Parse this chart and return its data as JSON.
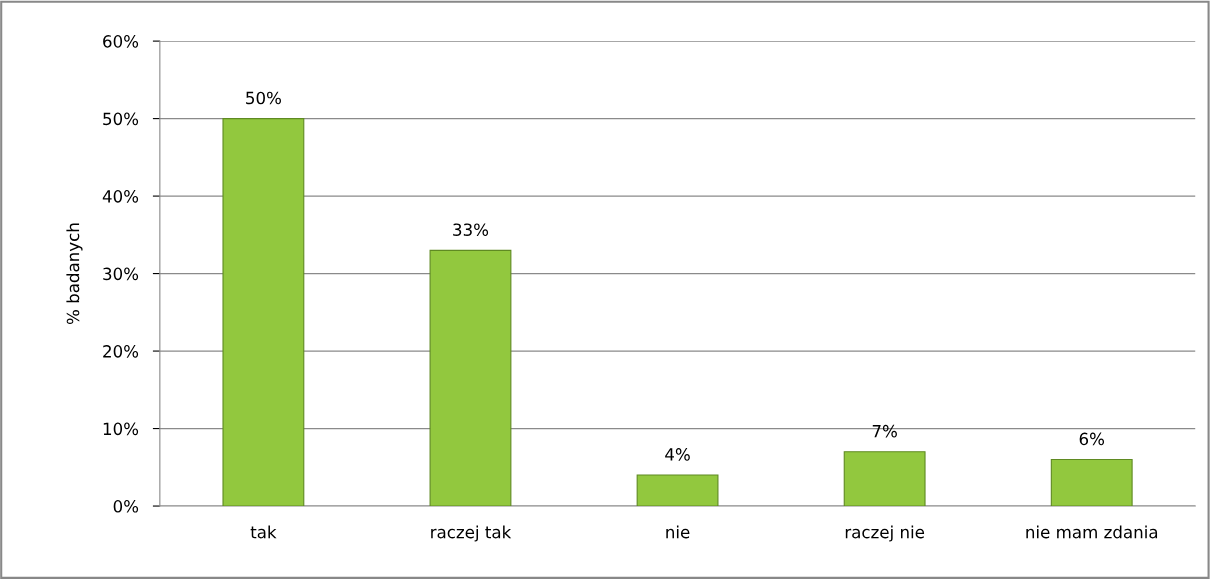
{
  "chart_data": {
    "type": "bar",
    "ylabel": "% badanych",
    "categories": [
      "tak",
      "raczej tak",
      "nie",
      "raczej nie",
      "nie mam zdania"
    ],
    "values": [
      50,
      33,
      4,
      7,
      6
    ],
    "value_labels": [
      "50%",
      "33%",
      "4%",
      "7%",
      "6%"
    ],
    "color": "#92c83e",
    "ylim": [
      0,
      60
    ],
    "yticks": [
      {
        "value": 0,
        "label": "0%"
      },
      {
        "value": 10,
        "label": "10%"
      },
      {
        "value": 20,
        "label": "20%"
      },
      {
        "value": 30,
        "label": "30%"
      },
      {
        "value": 40,
        "label": "40%"
      },
      {
        "value": 50,
        "label": "50%"
      },
      {
        "value": 60,
        "label": "60%"
      }
    ],
    "grid": "y",
    "legend": false
  }
}
